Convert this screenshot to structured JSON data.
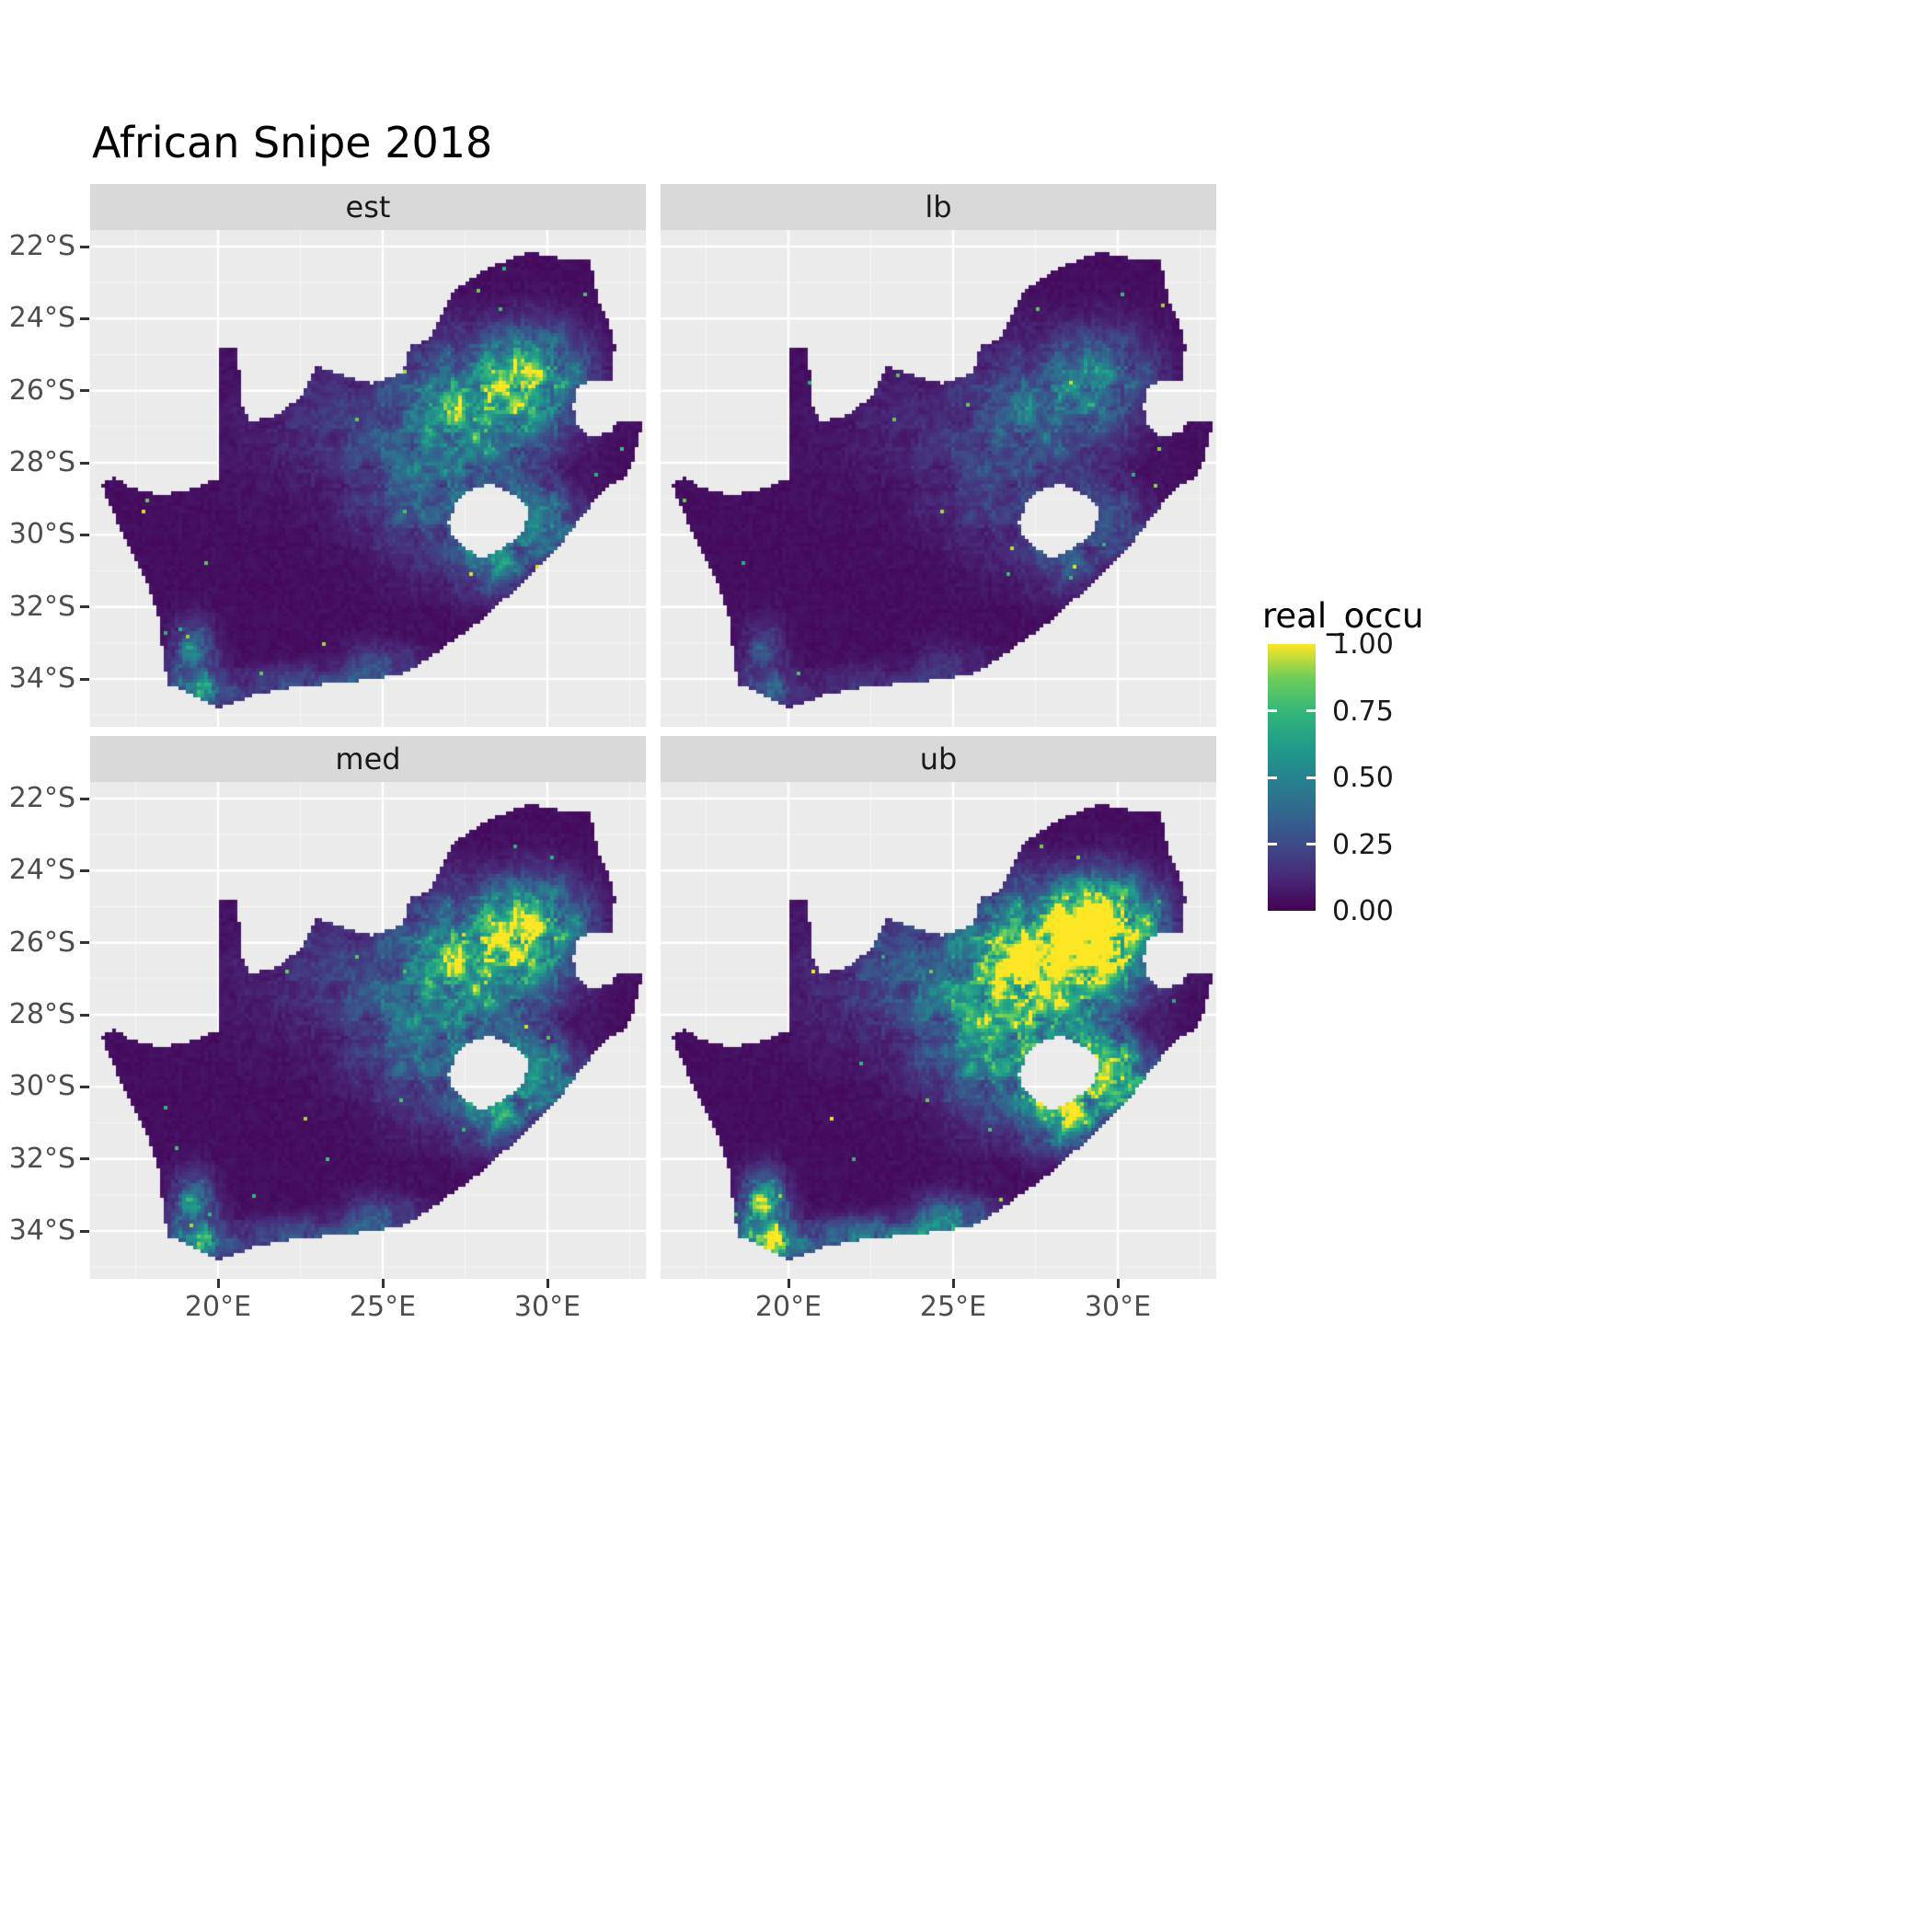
{
  "title": "African Snipe 2018",
  "chart_data": {
    "type": "heatmap",
    "title": "African Snipe 2018",
    "subtitle": "",
    "facets": [
      {
        "label": "est",
        "mult": 1.0,
        "seed": 11
      },
      {
        "label": "lb",
        "mult": 0.55,
        "seed": 23
      },
      {
        "label": "med",
        "mult": 1.15,
        "seed": 37
      },
      {
        "label": "ub",
        "mult": 1.9,
        "seed": 53
      }
    ],
    "x_axis": {
      "ticks": [
        {
          "label": "20°E",
          "lon": 20
        },
        {
          "label": "25°E",
          "lon": 25
        },
        {
          "label": "30°E",
          "lon": 30
        }
      ],
      "minor": [
        17.5,
        22.5,
        27.5,
        32.5
      ]
    },
    "y_axis": {
      "ticks": [
        {
          "label": "22°S",
          "lat": -22
        },
        {
          "label": "24°S",
          "lat": -24
        },
        {
          "label": "26°S",
          "lat": -26
        },
        {
          "label": "28°S",
          "lat": -28
        },
        {
          "label": "30°S",
          "lat": -30
        },
        {
          "label": "32°S",
          "lat": -32
        },
        {
          "label": "34°S",
          "lat": -34
        }
      ],
      "minor": [
        -23,
        -25,
        -27,
        -29,
        -31,
        -33,
        -35
      ]
    },
    "legend": {
      "title": "real_occu",
      "labels": [
        "1.00",
        "0.75",
        "0.50",
        "0.25",
        "0.00"
      ],
      "values": [
        1,
        0.75,
        0.5,
        0.25,
        0
      ],
      "colormap": "viridis",
      "stops": [
        [
          0,
          "#440154"
        ],
        [
          0.125,
          "#482878"
        ],
        [
          0.25,
          "#3e4a89"
        ],
        [
          0.375,
          "#31688e"
        ],
        [
          0.5,
          "#26828e"
        ],
        [
          0.625,
          "#1f9e89"
        ],
        [
          0.75,
          "#35b779"
        ],
        [
          0.875,
          "#6ece58"
        ],
        [
          1,
          "#fde725"
        ]
      ]
    },
    "extent": {
      "lon_min": 16.12,
      "lon_max": 33.0,
      "lat_min": -35.33,
      "lat_max": -21.54
    },
    "theme": {
      "panel_bg": "#ebebeb",
      "strip_bg": "#d9d9d9",
      "grid_major": "#ffffff",
      "grid_minor": "#ffffff",
      "tick_color": "#333333",
      "axis_text": "#4d4d4d",
      "title_color": "#000000"
    },
    "map": {
      "region": "South Africa raster of real_occu (occupancy 0-1), high values on the eastern Highveld around 26-27S / 27-30E, around Lesotho and near the southwest Cape coast; Lesotho shown as a hole",
      "outline": [
        [
          16.45,
          -28.58
        ],
        [
          17.05,
          -29.9
        ],
        [
          17.8,
          -31.2
        ],
        [
          18.25,
          -32.5
        ],
        [
          18.33,
          -33.45
        ],
        [
          18.48,
          -34.15
        ],
        [
          19.4,
          -34.5
        ],
        [
          20.0,
          -34.82
        ],
        [
          21.2,
          -34.42
        ],
        [
          22.5,
          -34.2
        ],
        [
          24.0,
          -34.1
        ],
        [
          25.65,
          -33.85
        ],
        [
          26.45,
          -33.4
        ],
        [
          27.05,
          -33.0
        ],
        [
          28.1,
          -32.3
        ],
        [
          29.1,
          -31.45
        ],
        [
          30.2,
          -30.5
        ],
        [
          31.0,
          -29.55
        ],
        [
          31.75,
          -28.7
        ],
        [
          32.35,
          -28.45
        ],
        [
          32.6,
          -27.95
        ],
        [
          32.9,
          -26.85
        ],
        [
          32.12,
          -26.85
        ],
        [
          31.97,
          -27.1
        ],
        [
          31.3,
          -27.3
        ],
        [
          30.95,
          -27.0
        ],
        [
          30.8,
          -26.5
        ],
        [
          30.82,
          -26.1
        ],
        [
          31.05,
          -25.8
        ],
        [
          31.45,
          -25.72
        ],
        [
          31.95,
          -25.72
        ],
        [
          32.02,
          -25.3
        ],
        [
          32.05,
          -24.7
        ],
        [
          31.85,
          -24.0
        ],
        [
          31.55,
          -23.5
        ],
        [
          31.3,
          -22.4
        ],
        [
          30.3,
          -22.3
        ],
        [
          29.4,
          -22.15
        ],
        [
          28.2,
          -22.6
        ],
        [
          27.2,
          -23.2
        ],
        [
          26.85,
          -23.75
        ],
        [
          26.4,
          -24.6
        ],
        [
          25.85,
          -24.75
        ],
        [
          25.6,
          -25.5
        ],
        [
          24.7,
          -25.8
        ],
        [
          23.9,
          -25.6
        ],
        [
          23.0,
          -25.3
        ],
        [
          22.55,
          -26.1
        ],
        [
          21.9,
          -26.65
        ],
        [
          21.0,
          -26.85
        ],
        [
          20.7,
          -26.3
        ],
        [
          20.6,
          -24.85
        ],
        [
          20.02,
          -24.85
        ],
        [
          20.0,
          -28.43
        ],
        [
          19.2,
          -28.72
        ],
        [
          18.2,
          -28.9
        ],
        [
          17.35,
          -28.68
        ],
        [
          16.9,
          -28.4
        ]
      ],
      "holes": [
        [
          [
            27.0,
            -29.6
          ],
          [
            27.3,
            -29.0
          ],
          [
            27.75,
            -28.7
          ],
          [
            28.35,
            -28.6
          ],
          [
            29.0,
            -28.9
          ],
          [
            29.45,
            -29.3
          ],
          [
            29.3,
            -29.85
          ],
          [
            28.7,
            -30.35
          ],
          [
            28.0,
            -30.65
          ],
          [
            27.4,
            -30.3
          ],
          [
            27.05,
            -29.95
          ]
        ]
      ],
      "hotspots": [
        {
          "lon": 28.3,
          "lat": -26.2,
          "sx": 1.5,
          "sy": 1.0,
          "amp": 1.05
        },
        {
          "lon": 29.8,
          "lat": -25.4,
          "sx": 1.0,
          "sy": 0.8,
          "amp": 0.5
        },
        {
          "lon": 26.8,
          "lat": -28.8,
          "sx": 1.6,
          "sy": 1.3,
          "amp": 0.45
        },
        {
          "lon": 28.6,
          "lat": -30.6,
          "sx": 0.9,
          "sy": 0.7,
          "amp": 0.55
        },
        {
          "lon": 29.6,
          "lat": -29.3,
          "sx": 0.7,
          "sy": 0.6,
          "amp": 0.4
        },
        {
          "lon": 19.3,
          "lat": -33.4,
          "sx": 0.45,
          "sy": 0.6,
          "amp": 0.7
        },
        {
          "lon": 19.3,
          "lat": -34.4,
          "sx": 0.8,
          "sy": 0.3,
          "amp": 0.5
        },
        {
          "lon": 22.5,
          "lat": -34.1,
          "sx": 1.8,
          "sy": 0.3,
          "amp": 0.3
        },
        {
          "lon": 25.0,
          "lat": -33.7,
          "sx": 0.8,
          "sy": 0.45,
          "amp": 0.3
        },
        {
          "lon": 30.6,
          "lat": -29.9,
          "sx": 0.5,
          "sy": 0.6,
          "amp": 0.35
        },
        {
          "lon": 24.0,
          "lat": -26.8,
          "sx": 2.2,
          "sy": 1.4,
          "amp": 0.18
        }
      ]
    }
  }
}
